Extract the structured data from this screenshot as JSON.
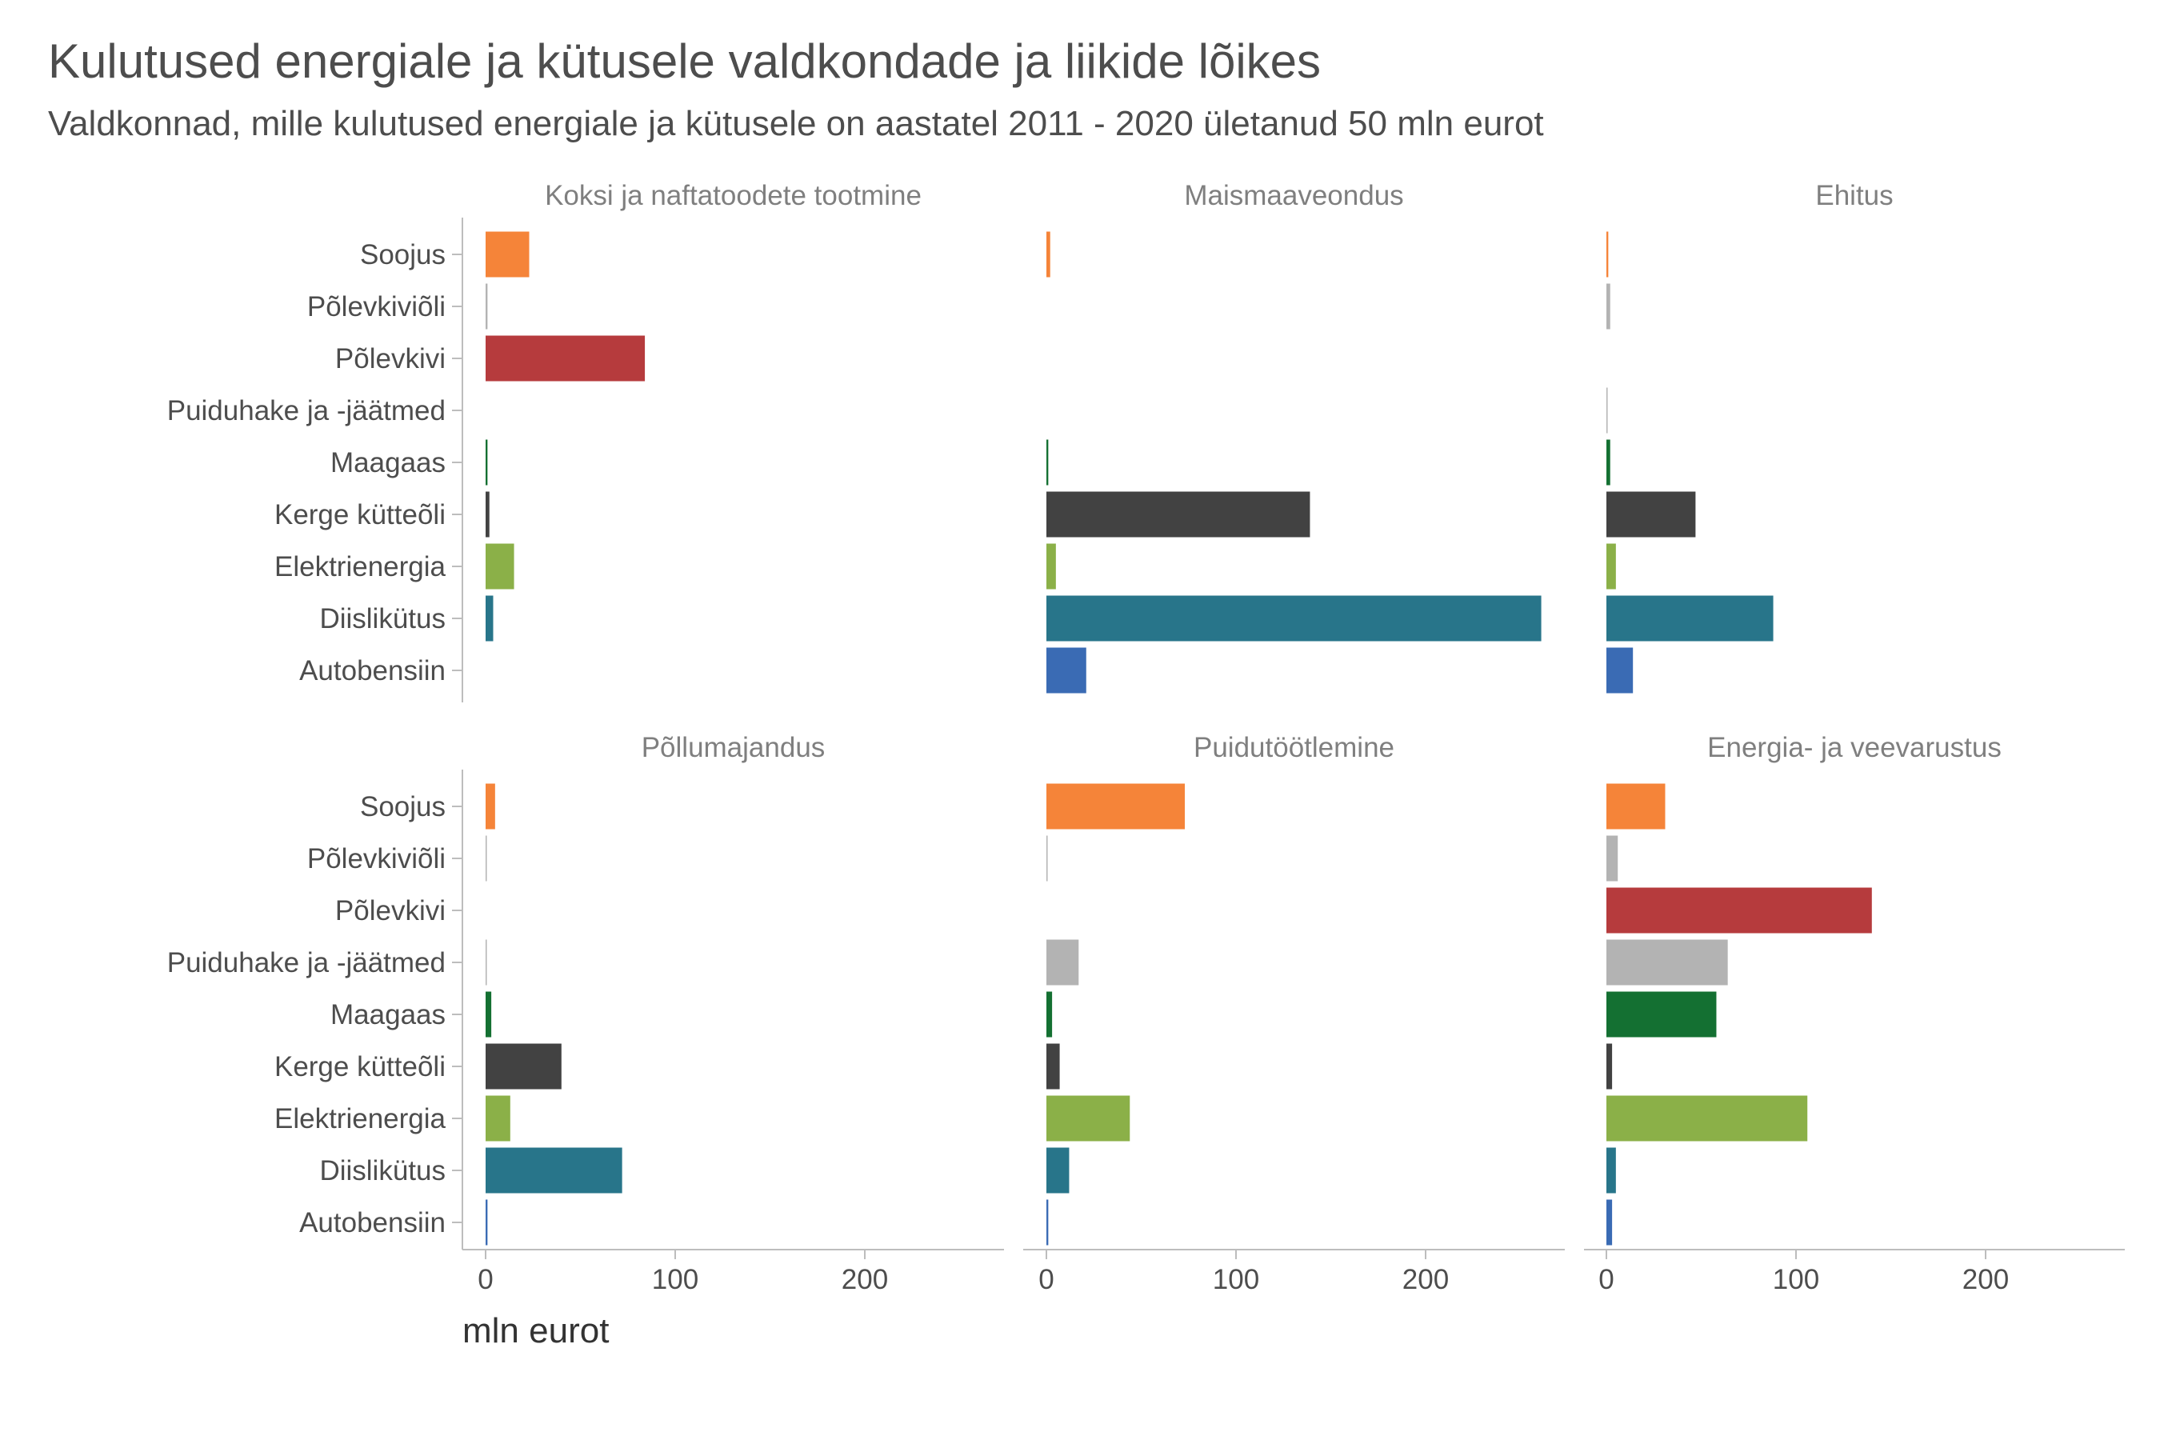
{
  "title": "Kulutused energiale ja kütusele valdkondade ja liikide lõikes",
  "subtitle": "Valdkonnad, mille kulutused energiale ja kütusele on aastatel 2011 - 2020 ületanud 50 mln eurot",
  "chart_data": {
    "type": "bar",
    "orientation": "horizontal",
    "layout": "facet grid 2 rows x 3 columns, shared axes",
    "grid": false,
    "xlabel": "mln eurot",
    "ylabel": "",
    "xlim": [
      0,
      270
    ],
    "x_ticks": [
      "0",
      "100",
      "200"
    ],
    "categories": [
      "Soojus",
      "Põlevkiviõli",
      "Põlevkivi",
      "Puiduhake ja -jäätmed",
      "Maagaas",
      "Kerge kütteõli",
      "Elektrienergia",
      "Diislikütus",
      "Autobensiin"
    ],
    "category_colors": [
      "#F58439",
      "#B3B3B3",
      "#B63B3D",
      "#B3B3B3",
      "#147032",
      "#424242",
      "#8BB048",
      "#28758A",
      "#3A6BB4"
    ],
    "facets": [
      {
        "name": "Koksi ja naftatoodete tootmine",
        "values": [
          23,
          1,
          84,
          0,
          1,
          2,
          15,
          4,
          0
        ]
      },
      {
        "name": "Maismaaveondus",
        "values": [
          2,
          0,
          0,
          0,
          1,
          139,
          5,
          261,
          21
        ]
      },
      {
        "name": "Ehitus",
        "values": [
          1,
          2,
          0,
          0.2,
          2,
          47,
          5,
          88,
          14
        ]
      },
      {
        "name": "Põllumajandus",
        "values": [
          5,
          0.5,
          0,
          0.3,
          3,
          40,
          13,
          72,
          1
        ]
      },
      {
        "name": "Puidutöötlemine",
        "values": [
          73,
          0.5,
          0,
          17,
          3,
          7,
          44,
          12,
          1
        ]
      },
      {
        "name": "Energia- ja veevarustus",
        "values": [
          31,
          6,
          140,
          64,
          58,
          3,
          106,
          5,
          3
        ]
      }
    ]
  }
}
